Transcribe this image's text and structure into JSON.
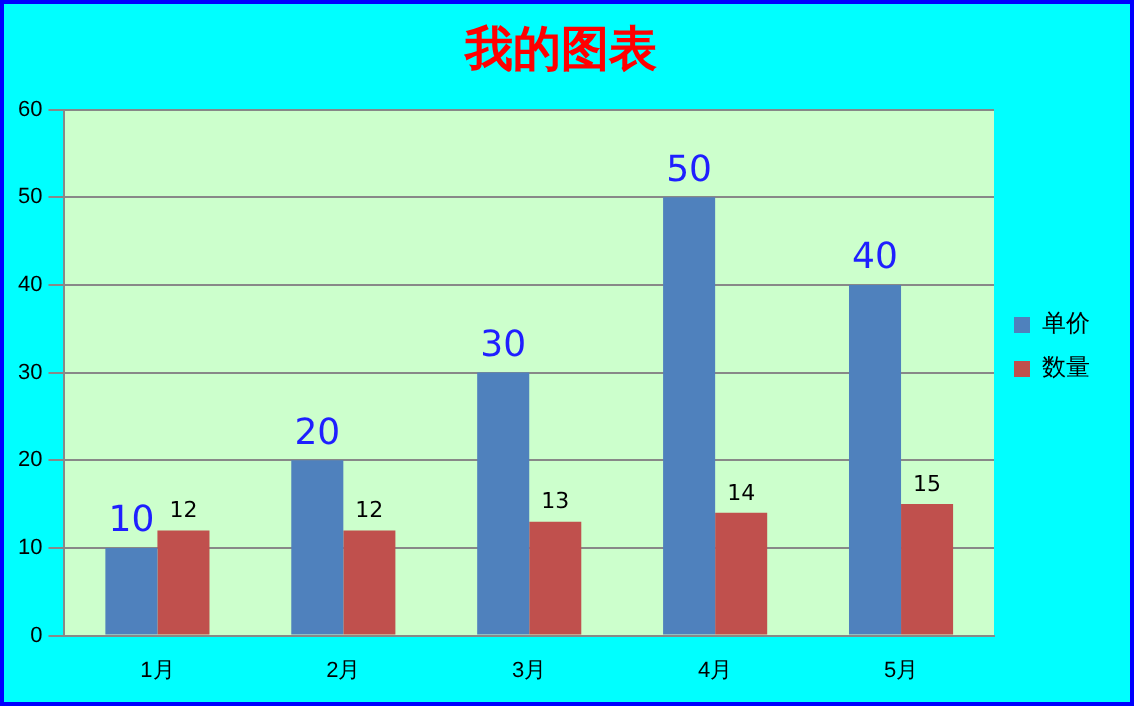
{
  "chart_data": {
    "type": "bar",
    "title": "我的图表",
    "categories": [
      "1月",
      "2月",
      "3月",
      "4月",
      "5月"
    ],
    "series": [
      {
        "name": "单价",
        "color": "#4f81bd",
        "values": [
          10,
          20,
          30,
          50,
          40
        ]
      },
      {
        "name": "数量",
        "color": "#c0504d",
        "values": [
          12,
          12,
          13,
          14,
          15
        ]
      }
    ],
    "ylim": [
      0,
      60
    ],
    "yticks": [
      0,
      10,
      20,
      30,
      40,
      50,
      60
    ],
    "grid": "y",
    "legend": "right",
    "data_labels": true
  }
}
